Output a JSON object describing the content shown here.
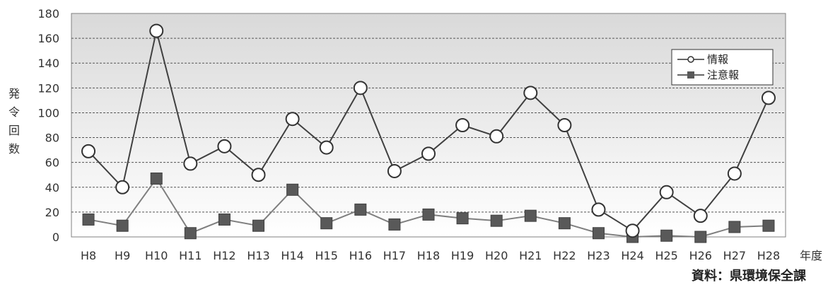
{
  "chart_data": {
    "type": "line",
    "categories": [
      "H8",
      "H9",
      "H10",
      "H11",
      "H12",
      "H13",
      "H14",
      "H15",
      "H16",
      "H17",
      "H18",
      "H19",
      "H20",
      "H21",
      "H22",
      "H23",
      "H24",
      "H25",
      "H26",
      "H27",
      "H28"
    ],
    "series": [
      {
        "name": "情報",
        "marker": "circle",
        "color": "#404040",
        "values": [
          69,
          40,
          166,
          59,
          73,
          50,
          95,
          72,
          120,
          53,
          67,
          90,
          81,
          116,
          90,
          22,
          5,
          36,
          17,
          51,
          112
        ]
      },
      {
        "name": "注意報",
        "marker": "square",
        "color": "#7f7f7f",
        "values": [
          14,
          9,
          47,
          3,
          14,
          9,
          38,
          11,
          22,
          10,
          18,
          15,
          13,
          17,
          11,
          3,
          0,
          1,
          0,
          8,
          9
        ]
      }
    ],
    "ylim": [
      0,
      180
    ],
    "yticks": [
      "0",
      "20",
      "40",
      "60",
      "80",
      "100",
      "120",
      "140",
      "160",
      "180"
    ],
    "ylabel": "発令回数",
    "xlabel": "年度",
    "grid": true,
    "legend_position": "top-right",
    "source": "資料：県環境保全課"
  }
}
